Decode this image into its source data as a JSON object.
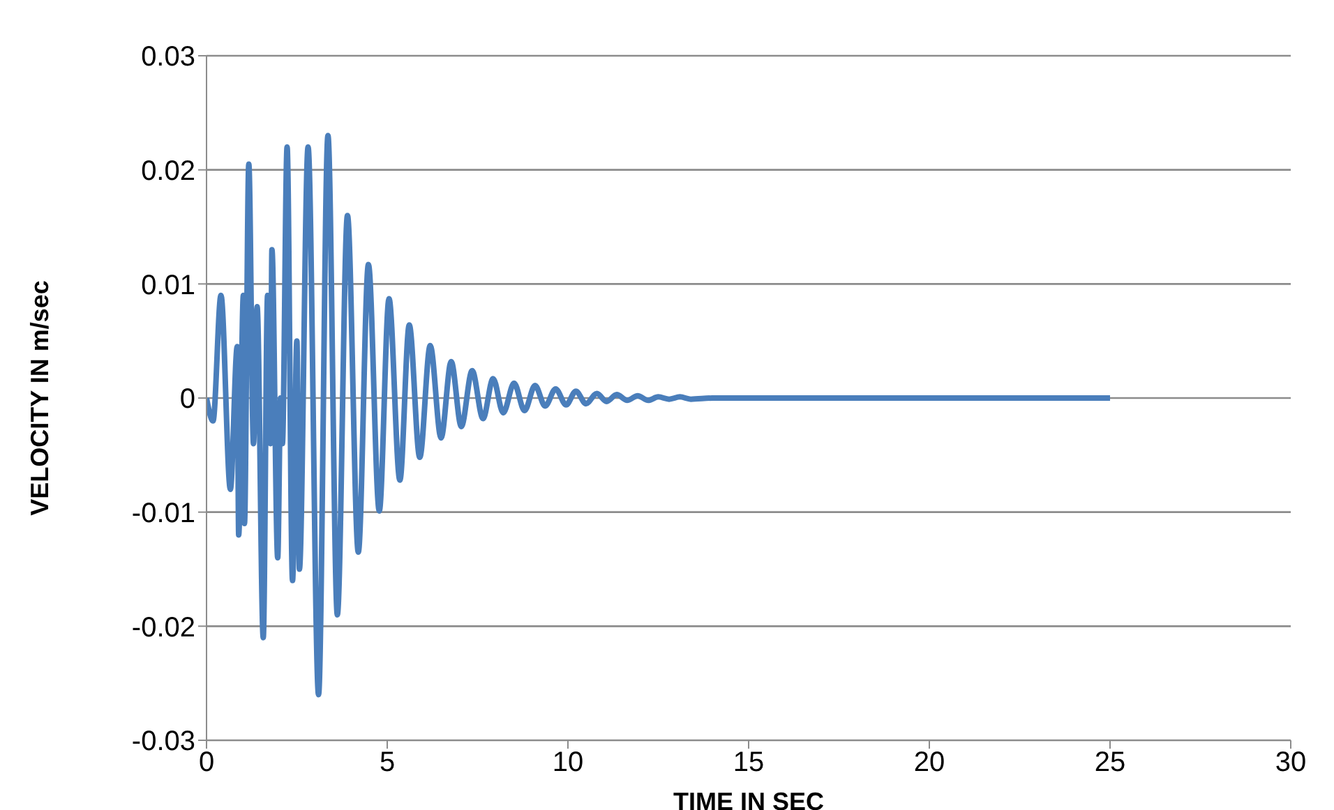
{
  "chart_data": {
    "type": "line",
    "xlabel": "TIME IN SEC",
    "ylabel": "VELOCITY IN m/sec",
    "xlim": [
      0,
      30
    ],
    "xticks": [
      0,
      5,
      10,
      15,
      20,
      25,
      30
    ],
    "ylim": [
      -0.03,
      0.03
    ],
    "yticks": [
      -0.03,
      -0.02,
      -0.01,
      0,
      0.01,
      0.02,
      0.03
    ],
    "grid": "y",
    "legend": false,
    "marker": "none",
    "line_style": "solid",
    "x": [
      0,
      0.18,
      0.4,
      0.66,
      0.85,
      0.89,
      1.02,
      1.05,
      1.17,
      1.3,
      1.4,
      1.57,
      1.69,
      1.77,
      1.81,
      1.97,
      2.05,
      2.1,
      2.23,
      2.38,
      2.5,
      2.57,
      2.81,
      3.1,
      3.36,
      3.62,
      3.9,
      4.2,
      4.48,
      4.78,
      5.05,
      5.35,
      5.61,
      5.9,
      6.19,
      6.49,
      6.77,
      7.05,
      7.35,
      7.65,
      7.93,
      8.21,
      8.51,
      8.8,
      9.09,
      9.37,
      9.66,
      9.95,
      10.22,
      10.5,
      10.8,
      11.07,
      11.35,
      11.64,
      11.93,
      12.22,
      12.5,
      12.8,
      13.1,
      13.4,
      14,
      25
    ],
    "series": [
      {
        "color": "#4a7ebb",
        "values": [
          0,
          -0.002,
          0.009,
          -0.008,
          0.0045,
          -0.012,
          0.009,
          -0.011,
          0.0205,
          -0.004,
          0.008,
          -0.021,
          0.009,
          -0.004,
          0.013,
          -0.014,
          0,
          -0.004,
          0.022,
          -0.016,
          0.005,
          -0.015,
          0.022,
          -0.026,
          0.023,
          -0.019,
          0.016,
          -0.0135,
          0.0117,
          -0.0099,
          0.0087,
          -0.0072,
          0.0064,
          -0.0052,
          0.0046,
          -0.0035,
          0.0032,
          -0.0025,
          0.0024,
          -0.0018,
          0.0017,
          -0.0013,
          0.0013,
          -0.0011,
          0.0011,
          -0.0007,
          0.0008,
          -0.0006,
          0.0006,
          -0.0005,
          0.0004,
          -0.0003,
          0.0003,
          -0.0002,
          0.0002,
          -0.0002,
          0.0001,
          -0.0001,
          0.0001,
          -0.0001,
          0,
          0
        ]
      }
    ]
  }
}
